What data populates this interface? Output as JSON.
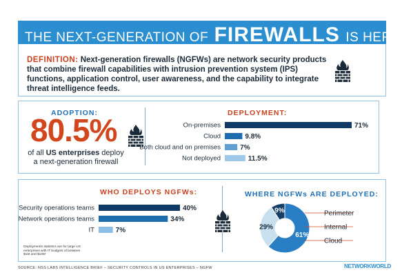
{
  "header": {
    "pre": "THE NEXT-GENERATION OF",
    "highlight": "FIREWALLS",
    "post": "IS HERE"
  },
  "definition": {
    "label": "DEFINITION:",
    "text": "Next-generation firewalls (NGFWs) are network security products that combine firewall capabilities with intrusion prevention system (IPS) functions, application control, user awareness, and the capability to integrate threat intelligence feeds."
  },
  "adoption": {
    "title": "ADOPTION:",
    "value": "80.5%",
    "desc_pre": "of all ",
    "desc_bold": "US enterprises",
    "desc_post": " deploy a next-generation firewall"
  },
  "icons": [
    "firewall-icon",
    "firewall-icon",
    "firewall-icon"
  ],
  "colors": {
    "header_blue": "#2a8ed0",
    "accent_red": "#c8411f",
    "navy": "#0f3a66",
    "mid_blue": "#1d6cae",
    "light_blue": "#8dbde3",
    "panel_border": "#8ec3e6"
  },
  "chart_data": [
    {
      "type": "bar",
      "orientation": "horizontal",
      "title": "DEPLOYMENT:",
      "categories": [
        "On-premises",
        "Cloud",
        "Both cloud and on premises",
        "Not deployed"
      ],
      "values": [
        71,
        9.8,
        7,
        11.5
      ],
      "value_labels": [
        "71%",
        "9.8%",
        "7%",
        "11.5%"
      ],
      "colors": [
        "#0f3a66",
        "#1d6cae",
        "#5fa0d4",
        "#9ec8e8"
      ],
      "xlim": [
        0,
        71
      ]
    },
    {
      "type": "bar",
      "orientation": "horizontal",
      "title": "WHO DEPLOYS NGFWs:",
      "categories": [
        "Security operations teams",
        "Network operations teams",
        "IT"
      ],
      "values": [
        40,
        34,
        7
      ],
      "value_labels": [
        "40%",
        "34%",
        "7%"
      ],
      "colors": [
        "#0f3a66",
        "#1d6cae",
        "#8dbde3"
      ],
      "xlim": [
        0,
        40
      ]
    },
    {
      "type": "pie",
      "title": "WHERE NGFWs ARE DEPLOYED:",
      "labels": [
        "Perimeter",
        "Internal",
        "Cloud"
      ],
      "values": [
        61,
        29,
        9
      ],
      "value_labels": [
        "61%",
        "29%",
        "9%"
      ],
      "colors": [
        "#2a7fc4",
        "#c8dff0",
        "#163d66"
      ]
    }
  ],
  "footnote": "Deployments statistics are for large US enterprises with IT budgets of between $1M and $10M",
  "source": "SOURCE: NSS LABS INTELLIGENCE BRIEF – SECURITY CONTROLS IN US ENTERPRISES – NGFW",
  "logo": "NETWORKWORLD"
}
